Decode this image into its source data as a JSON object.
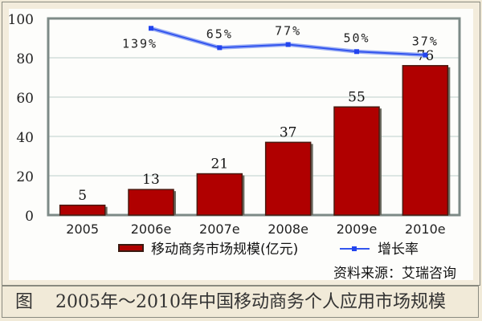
{
  "chart_data": {
    "type": "bar+line",
    "categories": [
      "2005",
      "2006e",
      "2007e",
      "2008e",
      "2009e",
      "2010e"
    ],
    "series": [
      {
        "name": "移动商务市场规模(亿元)",
        "type": "bar",
        "values": [
          5,
          13,
          21,
          37,
          55,
          76
        ],
        "color": "#b00000"
      },
      {
        "name": "增长率",
        "type": "line",
        "values": [
          null,
          139,
          65,
          77,
          50,
          37
        ],
        "labels": [
          "",
          "139%",
          "65%",
          "77%",
          "50%",
          "37%"
        ],
        "color": "#3355ee",
        "axis": "secondary-unlabeled"
      }
    ],
    "yticks": [
      "0",
      "20",
      "40",
      "60",
      "80",
      "100"
    ],
    "ylim": [
      0,
      100
    ],
    "grid": true,
    "legend": "bottom",
    "source": "资料来源：艾瑞咨询",
    "caption": "图    2005年～2010年中国移动商务个人应用市场规模"
  }
}
